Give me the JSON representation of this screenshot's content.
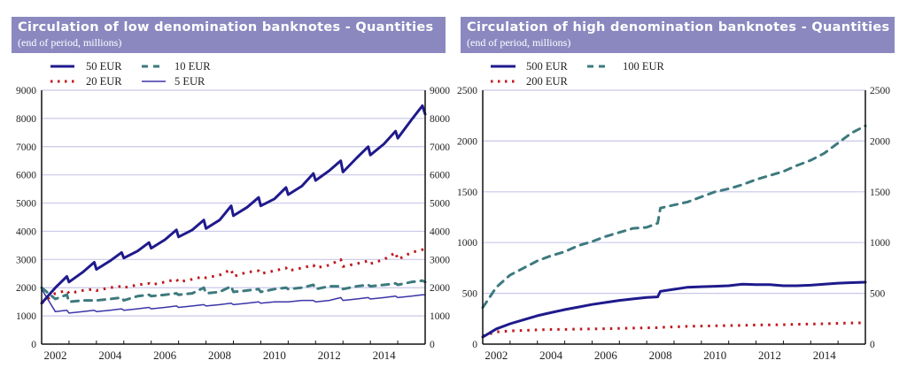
{
  "colors": {
    "title_bg": "#8b88c0",
    "grid": "#c9c8ea",
    "navy": "#1f1a8c",
    "red": "#c0161b",
    "teal": "#3d7a7e",
    "thin_navy": "#3b35a8"
  },
  "chart_data": [
    {
      "type": "line",
      "title": "Circulation of low denomination banknotes - Quantities",
      "subtitle": "(end of period, millions)",
      "xlabel": "",
      "ylabel": "",
      "ylim": [
        0,
        9000
      ],
      "yticks": [
        0,
        1000,
        2000,
        3000,
        4000,
        5000,
        6000,
        7000,
        8000,
        9000
      ],
      "ytick_labels": [
        "0",
        "1000",
        "2000",
        "3000",
        "4000",
        "5000",
        "6000",
        "7000",
        "8000",
        "9000"
      ],
      "xlim": [
        2002.0,
        2016.0
      ],
      "xtick_labels": [
        "2002",
        "2004",
        "2006",
        "2008",
        "2010",
        "2012",
        "2014"
      ],
      "grid": true,
      "legend_position": "top-left",
      "legend": [
        {
          "name": "50 EUR",
          "style": "solid-thick",
          "color": "#1f1a8c"
        },
        {
          "name": "10 EUR",
          "style": "dashed",
          "color": "#3d7a7e"
        },
        {
          "name": "20 EUR",
          "style": "dotted",
          "color": "#c0161b"
        },
        {
          "name": "5 EUR",
          "style": "solid-thin",
          "color": "#3b35a8"
        }
      ],
      "x": [
        2002.0,
        2002.5,
        2002.92,
        2003.0,
        2003.5,
        2003.92,
        2004.0,
        2004.5,
        2004.92,
        2005.0,
        2005.5,
        2005.92,
        2006.0,
        2006.5,
        2006.92,
        2007.0,
        2007.5,
        2007.92,
        2008.0,
        2008.5,
        2008.92,
        2009.0,
        2009.5,
        2009.92,
        2010.0,
        2010.5,
        2010.92,
        2011.0,
        2011.5,
        2011.92,
        2012.0,
        2012.5,
        2012.92,
        2013.0,
        2013.5,
        2013.92,
        2014.0,
        2014.5,
        2014.92,
        2015.0,
        2015.5,
        2015.9,
        2016.0
      ],
      "series": [
        {
          "name": "50 EUR",
          "values": [
            1450,
            2000,
            2400,
            2200,
            2550,
            2900,
            2650,
            2950,
            3250,
            3050,
            3300,
            3600,
            3400,
            3700,
            4050,
            3800,
            4050,
            4400,
            4100,
            4400,
            4900,
            4550,
            4850,
            5200,
            4900,
            5150,
            5550,
            5300,
            5600,
            6050,
            5800,
            6150,
            6500,
            6100,
            6600,
            7000,
            6700,
            7100,
            7550,
            7300,
            7950,
            8450,
            8150
          ]
        },
        {
          "name": "20 EUR",
          "values": [
            1450,
            1800,
            1900,
            1800,
            1900,
            1950,
            1900,
            2000,
            2050,
            2000,
            2100,
            2150,
            2100,
            2200,
            2300,
            2200,
            2300,
            2400,
            2350,
            2450,
            2650,
            2400,
            2550,
            2600,
            2500,
            2600,
            2700,
            2600,
            2700,
            2800,
            2700,
            2800,
            3000,
            2750,
            2850,
            2950,
            2850,
            3000,
            3250,
            3000,
            3250,
            3350,
            3400
          ]
        },
        {
          "name": "10 EUR",
          "values": [
            2000,
            1600,
            1750,
            1500,
            1550,
            1550,
            1550,
            1600,
            1650,
            1550,
            1700,
            1750,
            1700,
            1750,
            1800,
            1750,
            1800,
            2000,
            1800,
            1850,
            2050,
            1850,
            1900,
            1950,
            1850,
            1950,
            2000,
            1950,
            2000,
            2100,
            1950,
            2050,
            2050,
            1950,
            2050,
            2100,
            2050,
            2100,
            2150,
            2100,
            2200,
            2250,
            2200
          ]
        },
        {
          "name": "5 EUR",
          "values": [
            1950,
            1150,
            1200,
            1100,
            1150,
            1200,
            1150,
            1200,
            1250,
            1200,
            1250,
            1300,
            1250,
            1300,
            1350,
            1300,
            1350,
            1400,
            1350,
            1400,
            1450,
            1400,
            1450,
            1500,
            1450,
            1500,
            1500,
            1500,
            1550,
            1550,
            1500,
            1550,
            1650,
            1550,
            1600,
            1650,
            1600,
            1650,
            1700,
            1650,
            1700,
            1750,
            1750
          ]
        }
      ]
    },
    {
      "type": "line",
      "title": "Circulation of high denomination banknotes - Quantities",
      "subtitle": "(end of period, millions)",
      "xlabel": "",
      "ylabel": "",
      "ylim": [
        0,
        2500
      ],
      "yticks": [
        0,
        500,
        1000,
        1500,
        2000,
        2500
      ],
      "ytick_labels": [
        "0",
        "500",
        "1000",
        "1500",
        "2000",
        "2500"
      ],
      "xlim": [
        2002.0,
        2016.0
      ],
      "xtick_labels": [
        "2002",
        "2004",
        "2006",
        "2008",
        "2010",
        "2012",
        "2014"
      ],
      "grid": true,
      "legend_position": "top-left",
      "legend": [
        {
          "name": "500 EUR",
          "style": "solid-thick",
          "color": "#1f1a8c"
        },
        {
          "name": "100 EUR",
          "style": "dashed",
          "color": "#3d7a7e"
        },
        {
          "name": "200 EUR",
          "style": "dotted",
          "color": "#c0161b"
        }
      ],
      "x": [
        2002.0,
        2002.5,
        2003.0,
        2003.5,
        2004.0,
        2004.5,
        2005.0,
        2005.5,
        2006.0,
        2006.5,
        2007.0,
        2007.5,
        2008.0,
        2008.4,
        2008.5,
        2009.0,
        2009.5,
        2010.0,
        2010.5,
        2011.0,
        2011.5,
        2012.0,
        2012.5,
        2013.0,
        2013.5,
        2014.0,
        2014.5,
        2015.0,
        2015.5,
        2016.0
      ],
      "series": [
        {
          "name": "500 EUR",
          "values": [
            70,
            150,
            200,
            240,
            280,
            310,
            340,
            365,
            390,
            410,
            430,
            445,
            460,
            465,
            520,
            540,
            560,
            565,
            570,
            575,
            590,
            585,
            585,
            575,
            575,
            580,
            590,
            600,
            605,
            610
          ]
        },
        {
          "name": "100 EUR",
          "values": [
            360,
            560,
            680,
            750,
            820,
            870,
            910,
            970,
            1010,
            1060,
            1100,
            1140,
            1150,
            1190,
            1340,
            1370,
            1400,
            1450,
            1500,
            1530,
            1570,
            1620,
            1660,
            1700,
            1760,
            1810,
            1880,
            1980,
            2080,
            2150
          ]
        },
        {
          "name": "200 EUR",
          "values": [
            80,
            120,
            130,
            135,
            140,
            145,
            145,
            148,
            150,
            152,
            155,
            158,
            160,
            162,
            165,
            170,
            175,
            178,
            180,
            182,
            185,
            188,
            190,
            192,
            195,
            198,
            200,
            205,
            208,
            210
          ]
        }
      ]
    }
  ]
}
